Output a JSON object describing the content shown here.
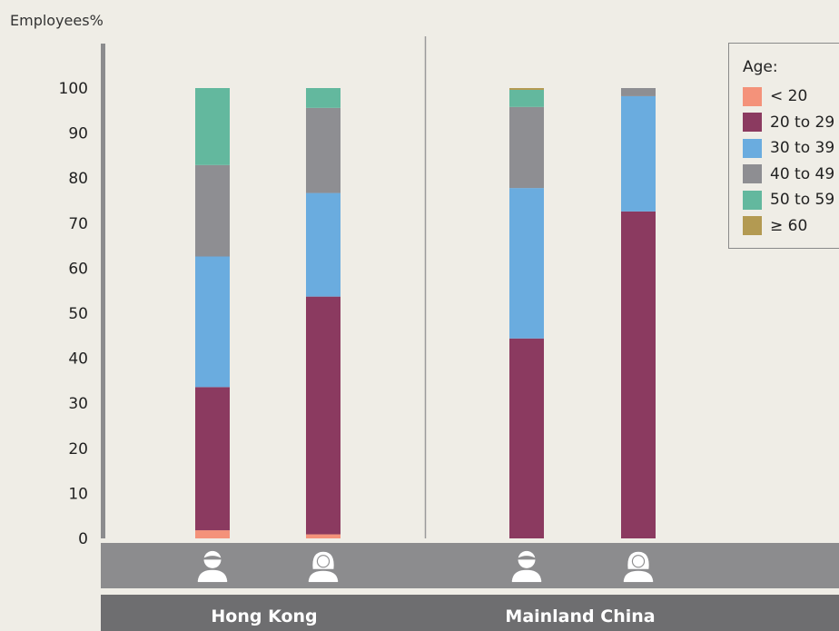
{
  "chart_data": {
    "type": "bar",
    "stacked": true,
    "ylabel": "Employees%",
    "ylim": [
      0,
      100
    ],
    "yticks": [
      0,
      10,
      20,
      30,
      40,
      50,
      60,
      70,
      80,
      90,
      100
    ],
    "groups": [
      {
        "name": "Hong Kong",
        "categories": [
          "male",
          "female"
        ]
      },
      {
        "name": "Mainland China",
        "categories": [
          "male",
          "female"
        ]
      }
    ],
    "categories": [
      "Hong Kong male",
      "Hong Kong female",
      "Mainland China male",
      "Mainland China female"
    ],
    "series": [
      {
        "name": "< 20",
        "color": "#f4927a",
        "values": [
          1.8,
          0.9,
          0.0,
          0.0
        ]
      },
      {
        "name": "20 to 29",
        "color": "#8b3a60",
        "values": [
          31.8,
          52.8,
          44.4,
          72.6
        ]
      },
      {
        "name": "30 to 39",
        "color": "#6aacdf",
        "values": [
          29.0,
          23.0,
          33.4,
          25.6
        ]
      },
      {
        "name": "40 to 49",
        "color": "#8e8e92",
        "values": [
          20.3,
          18.9,
          18.0,
          1.8
        ]
      },
      {
        "name": "50 to 59",
        "color": "#63b89e",
        "values": [
          17.1,
          4.4,
          3.8,
          0.0
        ]
      },
      {
        "name": "≥ 60",
        "color": "#b39a52",
        "values": [
          0.0,
          0.0,
          0.4,
          0.0
        ]
      }
    ],
    "legend": {
      "title": "Age:",
      "position": "top-right"
    },
    "icons": [
      "male-person-icon",
      "female-person-icon",
      "male-person-icon",
      "female-person-icon"
    ]
  }
}
